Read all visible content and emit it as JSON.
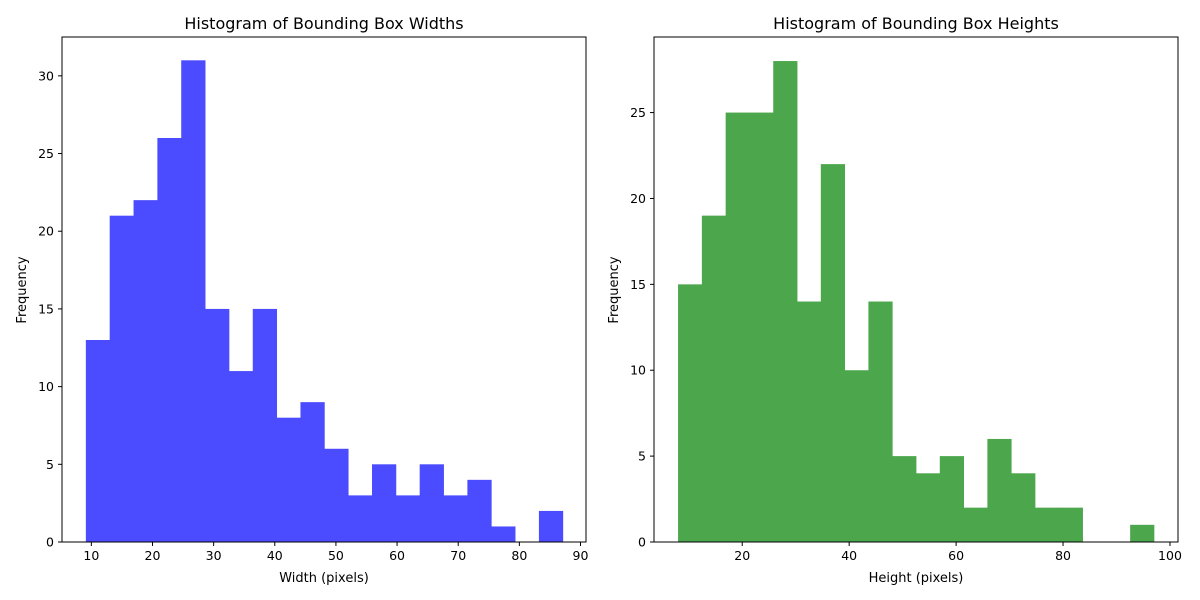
{
  "chart_data": [
    {
      "type": "bar",
      "title": "Histogram of Bounding Box Widths",
      "xlabel": "Width (pixels)",
      "ylabel": "Frequency",
      "color": "#4b4bff",
      "bin_start": 9.1,
      "bin_width": 3.9,
      "values": [
        13,
        21,
        22,
        26,
        31,
        15,
        11,
        15,
        8,
        9,
        6,
        3,
        5,
        3,
        5,
        3,
        4,
        1,
        0,
        2
      ],
      "xlim": [
        5.2,
        90.9
      ],
      "ylim": [
        0,
        32.5
      ],
      "xticks": [
        10,
        20,
        30,
        40,
        50,
        60,
        70,
        80,
        90
      ],
      "yticks": [
        0,
        5,
        10,
        15,
        20,
        25,
        30
      ],
      "grid": false
    },
    {
      "type": "bar",
      "title": "Histogram of Bounding Box Heights",
      "xlabel": "Height (pixels)",
      "ylabel": "Frequency",
      "color": "#4ca64c",
      "bin_start": 8.0,
      "bin_width": 4.45,
      "values": [
        15,
        19,
        25,
        25,
        28,
        14,
        22,
        10,
        14,
        5,
        4,
        5,
        2,
        6,
        4,
        2,
        2,
        0,
        0,
        1
      ],
      "xlim": [
        3.5,
        101.5
      ],
      "ylim": [
        0,
        29.4
      ],
      "xticks": [
        20,
        40,
        60,
        80,
        100
      ],
      "yticks": [
        0,
        5,
        10,
        15,
        20,
        25
      ],
      "grid": false
    }
  ]
}
